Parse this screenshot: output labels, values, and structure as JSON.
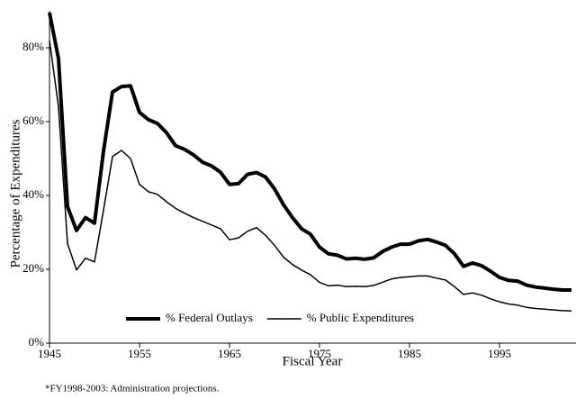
{
  "chart_data": {
    "type": "line",
    "x_label": "Fiscal Year",
    "y_label": "Percentage of Expenditures",
    "note": "*FY1998-2003: Administration projections.",
    "x": [
      1945,
      1946,
      1947,
      1948,
      1949,
      1950,
      1951,
      1952,
      1953,
      1954,
      1955,
      1956,
      1957,
      1958,
      1959,
      1960,
      1961,
      1962,
      1963,
      1964,
      1965,
      1966,
      1967,
      1968,
      1969,
      1970,
      1971,
      1972,
      1973,
      1974,
      1975,
      1976,
      1977,
      1978,
      1979,
      1980,
      1981,
      1982,
      1983,
      1984,
      1985,
      1986,
      1987,
      1988,
      1989,
      1990,
      1991,
      1992,
      1993,
      1994,
      1995,
      1996,
      1997,
      1998,
      1999,
      2000,
      2001,
      2002,
      2003
    ],
    "series": [
      {
        "name": "% Federal Outlays",
        "color": "#000000",
        "width": 4,
        "values": [
          89.5,
          77,
          37,
          30.5,
          34,
          32.5,
          52,
          68,
          69.5,
          69.7,
          62.5,
          60.5,
          59.5,
          57,
          53.5,
          52.5,
          51,
          49,
          48,
          46.3,
          43,
          43.2,
          45.7,
          46.2,
          45,
          41.8,
          37.5,
          34,
          31,
          29.5,
          26,
          24.2,
          23.8,
          22.8,
          23,
          22.7,
          23.1,
          24.8,
          26,
          26.8,
          26.8,
          27.7,
          28.1,
          27.4,
          26.5,
          24.2,
          20.8,
          21.7,
          21,
          19.5,
          17.8,
          17,
          16.8,
          15.7,
          15.2,
          14.9,
          14.6,
          14.4,
          14.4
        ]
      },
      {
        "name": "% Public Expenditures",
        "color": "#000000",
        "width": 1.5,
        "values": [
          82,
          64,
          27,
          19.8,
          23,
          22,
          36,
          50.5,
          52.2,
          50,
          43,
          41,
          40.3,
          38.3,
          36.5,
          35.2,
          34,
          33,
          32,
          31,
          28,
          28.5,
          30.3,
          31.3,
          29.2,
          26.5,
          23.3,
          21.3,
          19.8,
          18.5,
          16.5,
          15.5,
          15.7,
          15.3,
          15.4,
          15.3,
          15.6,
          16.5,
          17.4,
          17.8,
          18,
          18.2,
          18.2,
          17.6,
          17.1,
          15.3,
          13.2,
          13.6,
          13,
          12,
          11.2,
          10.6,
          10.3,
          9.7,
          9.4,
          9.2,
          9,
          8.8,
          8.7
        ]
      }
    ],
    "xlim": [
      1945,
      2003
    ],
    "xticks": [
      1945,
      1955,
      1965,
      1975,
      1985,
      1995
    ],
    "ylim": [
      0,
      90
    ],
    "yticks": [
      {
        "value": 0,
        "label": "0%"
      },
      {
        "value": 20,
        "label": "20%"
      },
      {
        "value": 40,
        "label": "40%"
      },
      {
        "value": 60,
        "label": "60%"
      },
      {
        "value": 80,
        "label": "80%"
      }
    ],
    "legend": "lower center",
    "grid": false
  }
}
